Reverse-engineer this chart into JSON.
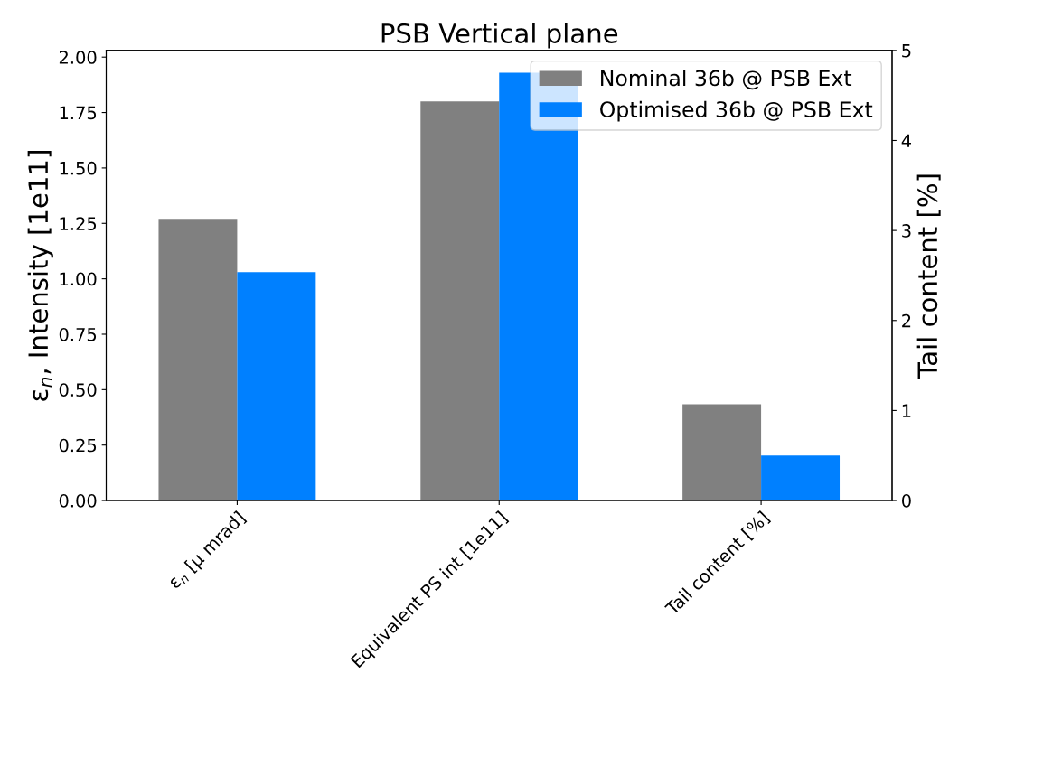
{
  "chart_data": {
    "type": "bar",
    "title": "PSB Vertical plane",
    "categories": [
      "ε$_{n}$ [μ mrad]",
      "Equivalent PS int [1e11]",
      "Tail content [%]"
    ],
    "ylabel": "ε$_{n}$, Intensity [1e11]",
    "y2label": "Tail content [%]",
    "series": [
      {
        "name": "Nominal 36b @ PSB Ext",
        "color": "#808080",
        "values": [
          1.27,
          1.8,
          null
        ]
      },
      {
        "name": "Optimised 36b @ PSB Ext",
        "color": "#0080ff",
        "values": [
          1.03,
          1.93,
          null
        ]
      },
      {
        "color": "#808080",
        "values": [
          null,
          null,
          1.07
        ],
        "axis": "y2"
      },
      {
        "color": "#0080ff",
        "values": [
          null,
          null,
          0.5
        ],
        "axis": "y2"
      }
    ],
    "ylim": [
      0,
      2.03
    ],
    "yticks": [
      {
        "value": 0,
        "label": "0.00"
      },
      0.25,
      {
        "value": 0.5,
        "label": "0.50"
      },
      0.75,
      {
        "value": 1,
        "label": "1.00"
      },
      1.25,
      {
        "value": 1.5,
        "label": "1.50"
      },
      1.75,
      {
        "value": 2,
        "label": "2.00"
      }
    ],
    "y2lim": [
      0,
      5
    ],
    "y2ticks": [
      0,
      1,
      2,
      3,
      4,
      5
    ],
    "legend": "top right",
    "grid": false
  }
}
